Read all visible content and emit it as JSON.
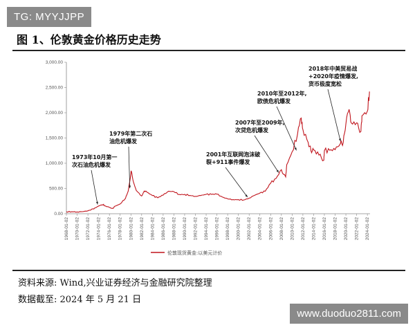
{
  "watermark_top": "TG: MYYJJPP",
  "watermark_bottom": "www.duoduo2811.com",
  "figure_title": "图 1、伦敦黄金价格历史走势",
  "source_line": "资料来源:  Wind,兴业证券经济与金融研究院整理",
  "date_line": "数据截至:  2024 年 5 月 21 日",
  "colors": {
    "series": "#c0141c",
    "axis": "#888888"
  },
  "chart_data": {
    "type": "line",
    "title": "",
    "xlabel": "",
    "ylabel": "",
    "ylim": [
      0,
      3000
    ],
    "yticks": [
      "0.00",
      "500.00",
      "1,000.00",
      "1,500.00",
      "2,000.00",
      "2,500.00",
      "3,000.00"
    ],
    "xticks": [
      "1968-01-02",
      "1970-01-02",
      "1972-01-02",
      "1974-01-02",
      "1976-01-02",
      "1978-01-02",
      "1980-01-02",
      "1982-01-02",
      "1984-01-02",
      "1986-01-02",
      "1988-01-02",
      "1990-01-02",
      "1992-01-02",
      "1994-01-02",
      "1996-01-02",
      "1998-01-02",
      "2000-01-02",
      "2002-01-02",
      "2004-01-02",
      "2006-01-02",
      "2008-01-02",
      "2010-01-02",
      "2012-01-02",
      "2014-01-02",
      "2016-01-02",
      "2018-01-02",
      "2020-01-02",
      "2022-01-02",
      "2024-01-02"
    ],
    "legend": "top-bottom-center",
    "series": [
      {
        "name": "伦敦现货黄金:以美元计价",
        "x": [
          1968,
          1969,
          1970,
          1971,
          1972,
          1973,
          1973.5,
          1974,
          1974.9,
          1975,
          1976,
          1976.7,
          1977,
          1978,
          1979,
          1979.5,
          1980.05,
          1980.5,
          1981,
          1982,
          1982.5,
          1983,
          1984,
          1985,
          1986,
          1987,
          1988,
          1989,
          1990,
          1991,
          1992,
          1993,
          1994,
          1995,
          1996,
          1997,
          1998,
          1999,
          2000,
          2001,
          2002,
          2003,
          2004,
          2005,
          2006,
          2007,
          2008,
          2008.8,
          2009,
          2010,
          2011,
          2011.7,
          2012,
          2013,
          2013.5,
          2014,
          2015,
          2015.9,
          2016,
          2017,
          2018,
          2019,
          2019.5,
          2020,
          2020.6,
          2021,
          2022,
          2022.8,
          2023,
          2024,
          2024.4
        ],
        "y": [
          38,
          40,
          36,
          41,
          58,
          97,
          120,
          154,
          185,
          161,
          125,
          105,
          148,
          193,
          307,
          450,
          850,
          620,
          460,
          350,
          450,
          424,
          360,
          317,
          368,
          446,
          437,
          381,
          383,
          362,
          344,
          360,
          384,
          384,
          388,
          331,
          294,
          279,
          280,
          272,
          310,
          363,
          409,
          445,
          604,
          697,
          872,
          730,
          972,
          1225,
          1570,
          1895,
          1670,
          1411,
          1250,
          1266,
          1160,
          1060,
          1250,
          1257,
          1268,
          1393,
          1410,
          1770,
          2067,
          1798,
          1800,
          1630,
          1940,
          2030,
          2420
        ]
      }
    ],
    "annotations": [
      {
        "lines": [
          "1973年10月第一",
          "次石油危机爆发"
        ],
        "at": [
          1973.8,
          130
        ]
      },
      {
        "lines": [
          "1979年第二次石",
          "油危机爆发"
        ],
        "at": [
          1979.8,
          450
        ]
      },
      {
        "lines": [
          "2001年互联网泡沫破",
          "裂+911事件爆发"
        ],
        "at": [
          2001.7,
          272
        ]
      },
      {
        "lines": [
          "2007年至2009年,",
          "次贷危机爆发"
        ],
        "at": [
          2007.5,
          760
        ]
      },
      {
        "lines": [
          "2010年至2012年,",
          "欧债危机爆发"
        ],
        "at": [
          2010.8,
          1200
        ]
      },
      {
        "lines": [
          "2018年中美贸易战",
          "+2020年疫情爆发,",
          "货币极度宽松"
        ],
        "at": [
          2019.0,
          1380
        ]
      }
    ]
  }
}
